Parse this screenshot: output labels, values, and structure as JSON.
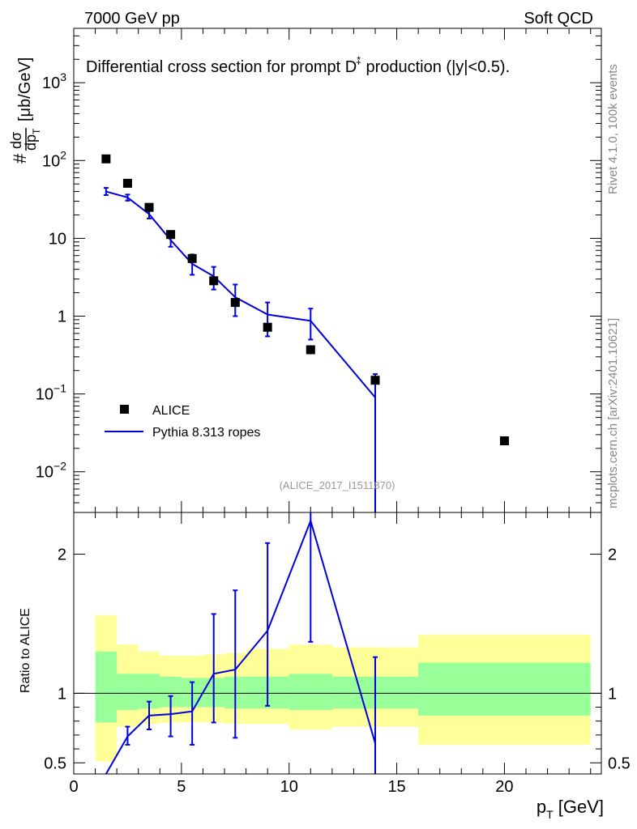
{
  "header": {
    "left": "7000 GeV pp",
    "right": "Soft QCD"
  },
  "side_labels": {
    "rivet": "Rivet 4.1.0,  100k events",
    "mcplots": "mcplots.cern.ch [arXiv:2401.10621]"
  },
  "chart_data": {
    "type": "scatter",
    "title": "Differential cross section for prompt D*+ production (|y|<0.5).",
    "analysis_id": "(ALICE_2017_I1511870)",
    "xlabel": "p_T [GeV]",
    "ylabel": "# dσ/dp_T [μb/GeV]",
    "ratio_ylabel": "Ratio to ALICE",
    "xlim": [
      0,
      24.5
    ],
    "ylim_log": [
      0.003,
      5000
    ],
    "ratio_ylim": [
      0.42,
      2.3
    ],
    "x_ticks": [
      0,
      5,
      10,
      15,
      20
    ],
    "y_ticks": [
      {
        "v": 0.01,
        "label": "10",
        "sup": "−2"
      },
      {
        "v": 0.1,
        "label": "10",
        "sup": "−1"
      },
      {
        "v": 1,
        "label": "1",
        "sup": ""
      },
      {
        "v": 10,
        "label": "10",
        "sup": ""
      },
      {
        "v": 100,
        "label": "10",
        "sup": "2"
      },
      {
        "v": 1000,
        "label": "10",
        "sup": "3"
      }
    ],
    "ratio_ticks": [
      {
        "v": 0.5,
        "label": "0.5"
      },
      {
        "v": 1,
        "label": "1"
      },
      {
        "v": 2,
        "label": "2"
      }
    ],
    "legend": {
      "data_label": "ALICE",
      "mc_label": "Pythia 8.313 ropes",
      "position": "lower-left"
    },
    "colors": {
      "mc": "#0000dd",
      "stat_band": "#99ff99",
      "total_band": "#ffff99"
    },
    "data": {
      "name": "ALICE",
      "x": [
        1.5,
        2.5,
        3.5,
        4.5,
        5.5,
        6.5,
        7.5,
        9,
        11,
        14,
        20
      ],
      "y": [
        105,
        51,
        25,
        11.2,
        5.5,
        2.85,
        1.5,
        0.72,
        0.37,
        0.15,
        0.025
      ]
    },
    "mc": {
      "name": "Pythia 8.313 ropes",
      "x": [
        1.5,
        2.5,
        3.5,
        4.5,
        5.5,
        6.5,
        7.5,
        9,
        11,
        14
      ],
      "y": [
        40,
        33.5,
        20.5,
        9.5,
        4.7,
        3.25,
        1.75,
        1.05,
        0.87,
        0.09
      ],
      "ylo": [
        36,
        30.5,
        18,
        7.8,
        3.4,
        2.2,
        1.0,
        0.55,
        0.5,
        0.001
      ],
      "yhi": [
        44.5,
        36.5,
        23,
        11.3,
        6.2,
        4.3,
        2.55,
        1.5,
        1.25,
        0.18
      ]
    },
    "ratio": {
      "mc_x": [
        1.5,
        2.5,
        3.5,
        4.5,
        5.5,
        6.5,
        7.5,
        9,
        11,
        14
      ],
      "mc_y": [
        0.38,
        0.69,
        0.84,
        0.85,
        0.87,
        1.14,
        1.17,
        1.45,
        2.24,
        0.64
      ],
      "mc_lo": [
        0.38,
        0.63,
        0.74,
        0.69,
        0.63,
        0.79,
        0.68,
        0.91,
        1.37,
        0.42
      ],
      "mc_hi": [
        0.38,
        0.76,
        0.94,
        0.98,
        1.08,
        1.57,
        1.74,
        2.08,
        2.3,
        1.26
      ],
      "bins": [
        {
          "x0": 1,
          "x1": 2,
          "stat_lo": 0.79,
          "stat_hi": 1.3,
          "tot_lo": 0.51,
          "tot_hi": 1.56
        },
        {
          "x0": 2,
          "x1": 3,
          "stat_lo": 0.88,
          "stat_hi": 1.14,
          "tot_lo": 0.76,
          "tot_hi": 1.35
        },
        {
          "x0": 3,
          "x1": 4,
          "stat_lo": 0.89,
          "stat_hi": 1.14,
          "tot_lo": 0.78,
          "tot_hi": 1.3
        },
        {
          "x0": 4,
          "x1": 5,
          "stat_lo": 0.9,
          "stat_hi": 1.12,
          "tot_lo": 0.79,
          "tot_hi": 1.27
        },
        {
          "x0": 5,
          "x1": 6,
          "stat_lo": 0.9,
          "stat_hi": 1.11,
          "tot_lo": 0.79,
          "tot_hi": 1.27
        },
        {
          "x0": 6,
          "x1": 7,
          "stat_lo": 0.9,
          "stat_hi": 1.11,
          "tot_lo": 0.79,
          "tot_hi": 1.28
        },
        {
          "x0": 7,
          "x1": 8,
          "stat_lo": 0.89,
          "stat_hi": 1.12,
          "tot_lo": 0.78,
          "tot_hi": 1.29
        },
        {
          "x0": 8,
          "x1": 10,
          "stat_lo": 0.89,
          "stat_hi": 1.12,
          "tot_lo": 0.78,
          "tot_hi": 1.32
        },
        {
          "x0": 10,
          "x1": 12,
          "stat_lo": 0.88,
          "stat_hi": 1.14,
          "tot_lo": 0.74,
          "tot_hi": 1.35
        },
        {
          "x0": 12,
          "x1": 16,
          "stat_lo": 0.89,
          "stat_hi": 1.12,
          "tot_lo": 0.76,
          "tot_hi": 1.33
        },
        {
          "x0": 16,
          "x1": 24,
          "stat_lo": 0.84,
          "stat_hi": 1.22,
          "tot_lo": 0.63,
          "tot_hi": 1.42
        }
      ]
    }
  }
}
